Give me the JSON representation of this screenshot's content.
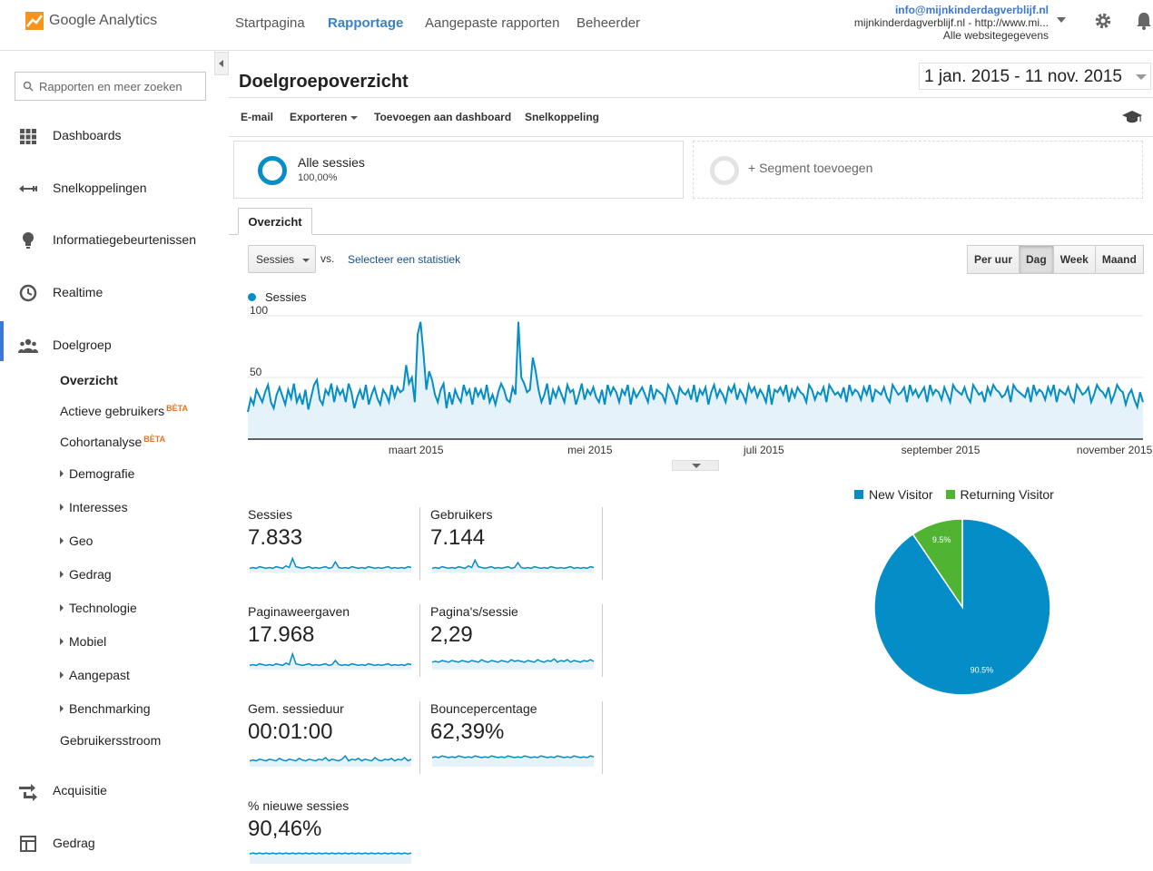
{
  "app": {
    "name": "Google Analytics"
  },
  "topnav": {
    "home": "Startpagina",
    "reporting": "Rapportage",
    "custom": "Aangepaste rapporten",
    "admin": "Beheerder"
  },
  "account": {
    "email": "info@mijnkinderdagverblijf.nl",
    "property": "mijnkinderdagverblijf.nl - http://www.mi...",
    "view": "Alle websitegegevens"
  },
  "sidebar": {
    "search_placeholder": "Rapporten en meer zoeken",
    "main_items": [
      {
        "label": "Dashboards",
        "icon": "dashboard-grid-icon"
      },
      {
        "label": "Snelkoppelingen",
        "icon": "shortcuts-arrow-icon"
      },
      {
        "label": "Informatiegebeurtenissen",
        "icon": "lightbulb-icon"
      },
      {
        "label": "Realtime",
        "icon": "clock-icon"
      },
      {
        "label": "Doelgroep",
        "icon": "people-icon"
      },
      {
        "label": "Acquisitie",
        "icon": "acquisition-arrows-icon"
      },
      {
        "label": "Gedrag",
        "icon": "behavior-layout-icon"
      }
    ],
    "audience_sub": [
      {
        "label": "Overzicht"
      },
      {
        "label": "Actieve gebruikers",
        "badge": "BÈTA"
      },
      {
        "label": "Cohortanalyse",
        "badge": "BÈTA"
      },
      {
        "label": "Demografie"
      },
      {
        "label": "Interesses"
      },
      {
        "label": "Geo"
      },
      {
        "label": "Gedrag"
      },
      {
        "label": "Technologie"
      },
      {
        "label": "Mobiel"
      },
      {
        "label": "Aangepast"
      },
      {
        "label": "Benchmarking"
      },
      {
        "label": "Gebruikersstroom"
      }
    ]
  },
  "page": {
    "title": "Doelgroepoverzicht",
    "date_range": "1 jan. 2015 - 11 nov. 2015"
  },
  "actions": {
    "email": "E-mail",
    "export": "Exporteren",
    "add_dashboard": "Toevoegen aan dashboard",
    "shortcut": "Snelkoppeling"
  },
  "segments": {
    "all_label": "Alle sessies",
    "all_pct": "100,00%",
    "add_label": "+ Segment toevoegen"
  },
  "tab": "Overzicht",
  "metric_select": {
    "value": "Sessies",
    "vs": "vs.",
    "link": "Selecteer een statistiek"
  },
  "granularity": [
    "Per uur",
    "Dag",
    "Week",
    "Maand"
  ],
  "granularity_selected": "Dag",
  "colors": {
    "accent": "#058dc7",
    "returning": "#50b432",
    "nav_active": "#3b78d8",
    "beta": "#e8711c"
  },
  "chart_data": [
    {
      "type": "line",
      "series_name": "Sessies",
      "ylim": [
        0,
        100
      ],
      "yticks": [
        50,
        100
      ],
      "x_labels": [
        "maart 2015",
        "mei 2015",
        "juli 2015",
        "september 2015",
        "november 2015"
      ],
      "x_range": [
        "2015-01-01",
        "2015-11-11"
      ],
      "values": [
        22,
        33,
        28,
        40,
        35,
        30,
        38,
        44,
        30,
        25,
        36,
        42,
        35,
        28,
        40,
        33,
        45,
        30,
        36,
        28,
        40,
        24,
        34,
        44,
        48,
        32,
        28,
        40,
        36,
        45,
        30,
        42,
        36,
        40,
        30,
        45,
        38,
        25,
        34,
        40,
        32,
        44,
        28,
        36,
        42,
        33,
        28,
        40,
        36,
        30,
        44,
        34,
        42,
        38,
        40,
        60,
        45,
        50,
        30,
        85,
        95,
        70,
        40,
        55,
        48,
        36,
        30,
        40,
        45,
        25,
        38,
        28,
        40,
        34,
        30,
        44,
        36,
        40,
        28,
        42,
        35,
        40,
        32,
        44,
        30,
        36,
        28,
        38,
        45,
        40,
        32,
        30,
        42,
        36,
        95,
        50,
        45,
        38,
        40,
        66,
        55,
        40,
        30,
        36,
        45,
        28,
        40,
        34,
        42,
        36,
        30,
        44,
        38,
        40,
        28,
        36,
        45,
        32,
        40,
        36,
        42,
        34,
        30,
        40,
        28,
        44,
        36,
        42,
        38,
        30,
        40,
        36,
        44,
        28,
        40,
        34,
        38,
        42,
        36,
        30,
        44,
        32,
        40,
        38,
        36,
        30,
        44,
        40,
        35,
        28,
        42,
        38,
        36,
        40,
        32,
        44,
        30,
        40,
        36,
        42,
        28,
        38,
        44,
        34,
        40,
        36,
        30,
        42,
        38,
        44,
        32,
        40,
        36,
        30,
        44,
        38,
        42,
        34,
        40,
        36,
        30,
        44,
        28,
        40,
        38,
        42,
        36,
        44,
        30,
        40,
        34,
        42,
        38,
        36,
        30,
        44,
        40,
        32,
        38,
        36,
        42,
        30,
        44,
        40,
        36,
        38,
        34,
        42,
        30,
        44,
        36,
        40,
        38,
        32,
        42,
        36,
        44,
        30,
        40,
        38,
        36,
        42,
        34,
        30,
        44,
        40,
        36,
        38,
        42,
        30,
        44,
        36,
        40,
        34,
        38,
        42,
        30,
        44,
        36,
        40,
        38,
        32,
        42,
        36,
        30,
        44,
        40,
        38,
        36,
        42,
        34,
        30,
        44,
        40,
        36,
        38,
        30,
        42,
        36,
        44,
        40,
        38,
        34,
        36,
        42,
        30,
        44,
        40,
        38,
        36,
        34,
        42,
        30,
        44,
        36,
        40,
        38,
        32,
        42,
        36,
        44,
        30,
        40,
        38,
        36,
        42,
        34,
        30,
        44,
        40,
        36,
        38,
        42,
        30,
        36,
        44,
        40,
        38,
        34,
        42,
        30,
        36,
        44,
        40,
        38,
        28,
        36,
        40,
        32,
        26,
        38,
        30
      ]
    },
    {
      "type": "pie",
      "series": [
        {
          "name": "New Visitor",
          "value": 90.5,
          "label": "90.5%"
        },
        {
          "name": "Returning Visitor",
          "value": 9.5,
          "label": "9.5%"
        }
      ]
    }
  ],
  "metrics": [
    {
      "name": "Sessies",
      "value": "7.833",
      "spark": [
        10,
        11,
        10,
        12,
        11,
        10,
        11,
        10,
        12,
        11,
        10,
        13,
        11,
        22,
        12,
        11,
        10,
        11,
        12,
        10,
        11,
        10,
        11,
        12,
        10,
        11,
        18,
        11,
        10,
        11,
        10,
        12,
        11,
        10,
        11,
        10,
        12,
        11,
        10,
        11,
        10,
        11,
        12,
        10,
        11,
        10,
        11,
        10,
        12,
        11
      ],
      "spark_baseline": 10
    },
    {
      "name": "Gebruikers",
      "value": "7.144",
      "spark": [
        10,
        11,
        10,
        12,
        11,
        10,
        11,
        10,
        12,
        11,
        10,
        13,
        11,
        20,
        12,
        11,
        10,
        11,
        12,
        10,
        11,
        10,
        11,
        12,
        10,
        11,
        17,
        11,
        10,
        11,
        10,
        12,
        11,
        10,
        11,
        10,
        12,
        11,
        10,
        11,
        10,
        11,
        12,
        10,
        11,
        10,
        11,
        10,
        12,
        11
      ],
      "spark_baseline": 10
    },
    {
      "name": "Paginaweergaven",
      "value": "17.968",
      "spark": [
        10,
        11,
        10,
        12,
        11,
        10,
        11,
        10,
        12,
        11,
        10,
        13,
        11,
        24,
        12,
        11,
        10,
        11,
        12,
        10,
        11,
        10,
        11,
        12,
        10,
        11,
        16,
        11,
        10,
        11,
        10,
        12,
        11,
        10,
        11,
        10,
        12,
        11,
        10,
        11,
        10,
        11,
        12,
        10,
        11,
        10,
        11,
        10,
        12,
        11
      ],
      "spark_baseline": 10
    },
    {
      "name": "Pagina's/sessie",
      "value": "2,29",
      "spark": [
        14,
        15,
        14,
        16,
        15,
        14,
        16,
        15,
        14,
        16,
        15,
        14,
        16,
        15,
        14,
        17,
        15,
        14,
        16,
        15,
        14,
        16,
        15,
        14,
        17,
        15,
        16,
        15,
        14,
        16,
        15,
        14,
        17,
        15,
        14,
        16,
        15,
        18,
        14,
        16,
        15,
        17,
        14,
        16,
        15,
        14,
        16,
        15,
        17,
        15
      ],
      "spark_baseline": 12
    },
    {
      "name": "Gem. sessieduur",
      "value": "00:01:00",
      "spark": [
        12,
        13,
        12,
        14,
        13,
        12,
        14,
        13,
        12,
        15,
        13,
        12,
        14,
        13,
        12,
        15,
        13,
        12,
        14,
        13,
        12,
        14,
        13,
        16,
        12,
        14,
        13,
        12,
        14,
        18,
        12,
        14,
        13,
        15,
        12,
        14,
        13,
        12,
        16,
        13,
        12,
        14,
        13,
        15,
        12,
        14,
        13,
        16,
        12,
        14
      ],
      "spark_baseline": 10
    },
    {
      "name": "Bouncepercentage",
      "value": "62,39%",
      "spark": [
        16,
        17,
        16,
        18,
        17,
        16,
        17,
        16,
        18,
        17,
        16,
        17,
        16,
        18,
        17,
        16,
        17,
        16,
        18,
        17,
        16,
        17,
        16,
        18,
        17,
        16,
        17,
        16,
        18,
        17,
        16,
        17,
        16,
        18,
        17,
        16,
        17,
        16,
        18,
        17,
        16,
        17,
        16,
        18,
        17,
        16,
        17,
        16,
        18,
        17
      ],
      "spark_baseline": 12
    },
    {
      "name": "% nieuwe sessies",
      "value": "90,46%",
      "spark": [
        17,
        18,
        17,
        18,
        17,
        18,
        17,
        18,
        17,
        18,
        17,
        18,
        17,
        18,
        17,
        18,
        17,
        18,
        17,
        18,
        17,
        18,
        17,
        18,
        17,
        18,
        17,
        18,
        17,
        18,
        17,
        18,
        17,
        18,
        17,
        18,
        17,
        18,
        17,
        18,
        17,
        18,
        17,
        18,
        17,
        18,
        17,
        18,
        17,
        18
      ],
      "spark_baseline": 14
    }
  ]
}
